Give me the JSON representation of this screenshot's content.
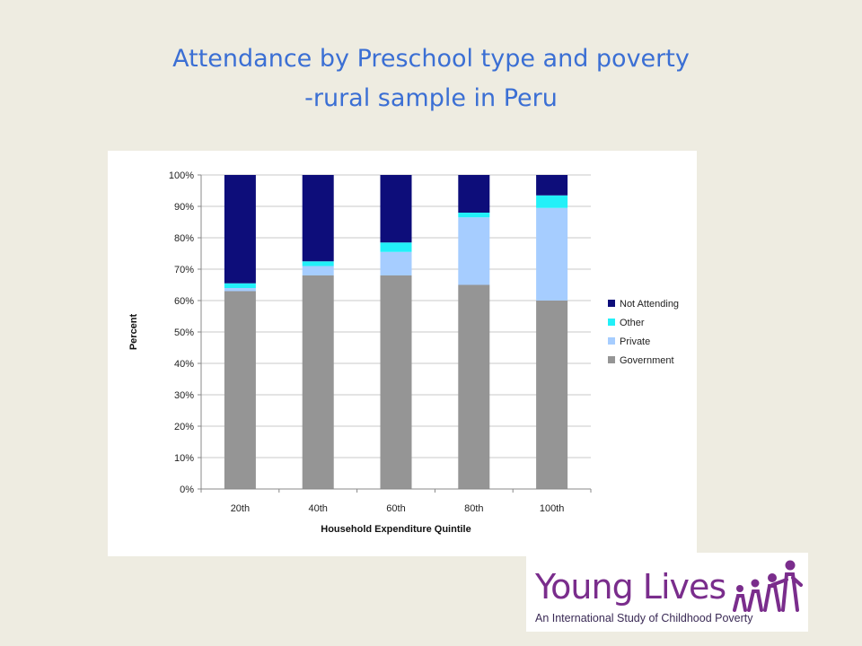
{
  "slide": {
    "title_line1": "Attendance by Preschool type and poverty",
    "title_line2": "-rural sample in Peru"
  },
  "chart_data": {
    "type": "bar",
    "stacked": true,
    "categories": [
      "20th",
      "40th",
      "60th",
      "80th",
      "100th"
    ],
    "series": [
      {
        "name": "Government",
        "color": "#959595",
        "values": [
          63,
          68,
          68,
          65,
          60
        ]
      },
      {
        "name": "Private",
        "color": "#a6cdff",
        "values": [
          1,
          3,
          7.5,
          21.5,
          29.5
        ]
      },
      {
        "name": "Other",
        "color": "#22f0f8",
        "values": [
          1.5,
          1.5,
          3,
          1.5,
          4
        ]
      },
      {
        "name": "Not Attending",
        "color": "#0d0d7a",
        "values": [
          34.5,
          27.5,
          21.5,
          12,
          6.5
        ]
      }
    ],
    "ylim": [
      0,
      100
    ],
    "yticks": [
      "0%",
      "10%",
      "20%",
      "30%",
      "40%",
      "50%",
      "60%",
      "70%",
      "80%",
      "90%",
      "100%"
    ],
    "xlabel": "Household Expenditure Quintile",
    "ylabel": "Percent",
    "grid": true,
    "legend_placement": "right",
    "legend_order": [
      "Not Attending",
      "Other",
      "Private",
      "Government"
    ]
  },
  "logo": {
    "wordmark": "Young Lives",
    "tagline": "An International Study of Childhood Poverty",
    "icon": "family-figures-icon",
    "color": "#7a2d8c"
  }
}
